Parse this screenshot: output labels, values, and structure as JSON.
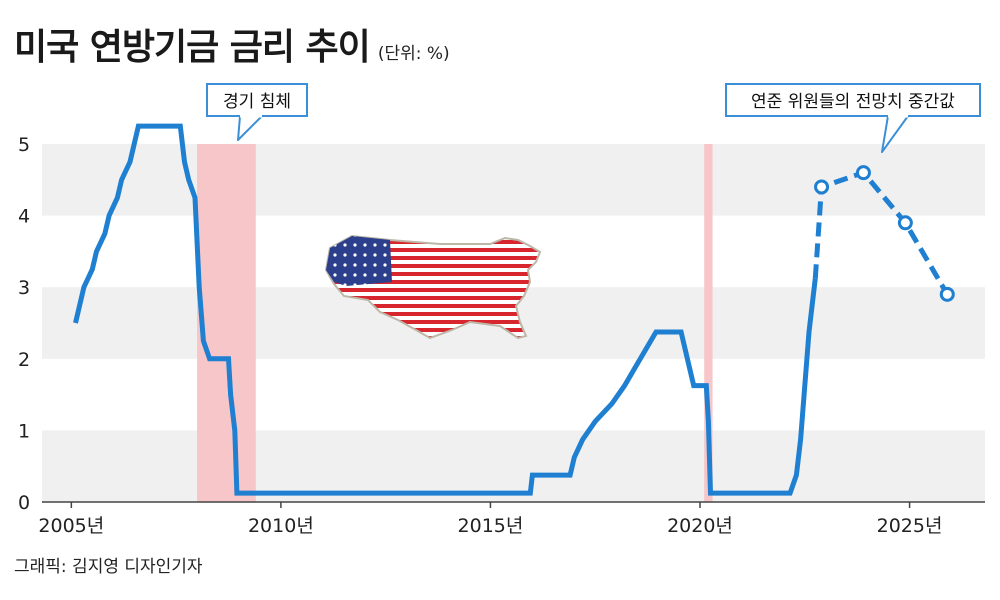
{
  "title": "미국 연방기금 금리 추이",
  "unit": "(단위: %)",
  "credit": "그래픽: 김지영 디자인기자",
  "annotations": {
    "recession": "경기 침체",
    "projection": "연준 위원들의 전망치 중간값"
  },
  "colors": {
    "line": "#1f7fd1",
    "band": "#f0f0f0",
    "recession": "#f6c6c8",
    "callout_border": "#3b8fd6"
  },
  "chart_data": {
    "type": "line",
    "title": "미국 연방기금 금리 추이",
    "xlabel": "",
    "ylabel": "",
    "ylim": [
      0,
      5.5
    ],
    "xlim": [
      2004.3,
      2026.8
    ],
    "y_ticks": [
      "0",
      "1",
      "2",
      "3",
      "4",
      "5"
    ],
    "x_ticks": [
      {
        "value": 2005,
        "label": "2005년"
      },
      {
        "value": 2010,
        "label": "2010년"
      },
      {
        "value": 2015,
        "label": "2015년"
      },
      {
        "value": 2020,
        "label": "2020년"
      },
      {
        "value": 2025,
        "label": "2025년"
      }
    ],
    "recessions": [
      [
        2008.0,
        2009.4
      ],
      [
        2020.1,
        2020.3
      ]
    ],
    "series": [
      {
        "style": "solid-step",
        "points": [
          [
            2005.1,
            2.5
          ],
          [
            2005.2,
            2.75
          ],
          [
            2005.3,
            3.0
          ],
          [
            2005.5,
            3.25
          ],
          [
            2005.6,
            3.5
          ],
          [
            2005.8,
            3.75
          ],
          [
            2005.9,
            4.0
          ],
          [
            2006.1,
            4.25
          ],
          [
            2006.2,
            4.5
          ],
          [
            2006.4,
            4.75
          ],
          [
            2006.5,
            5.0
          ],
          [
            2006.6,
            5.25
          ],
          [
            2007.6,
            5.25
          ],
          [
            2007.7,
            4.75
          ],
          [
            2007.8,
            4.5
          ],
          [
            2007.95,
            4.25
          ],
          [
            2008.05,
            3.0
          ],
          [
            2008.15,
            2.25
          ],
          [
            2008.3,
            2.0
          ],
          [
            2008.75,
            2.0
          ],
          [
            2008.8,
            1.5
          ],
          [
            2008.9,
            1.0
          ],
          [
            2008.95,
            0.125
          ],
          [
            2015.95,
            0.125
          ],
          [
            2016.0,
            0.375
          ],
          [
            2016.9,
            0.375
          ],
          [
            2017.0,
            0.625
          ],
          [
            2017.2,
            0.875
          ],
          [
            2017.5,
            1.125
          ],
          [
            2017.9,
            1.375
          ],
          [
            2018.2,
            1.625
          ],
          [
            2018.45,
            1.875
          ],
          [
            2018.7,
            2.125
          ],
          [
            2018.95,
            2.375
          ],
          [
            2019.55,
            2.375
          ],
          [
            2019.65,
            2.125
          ],
          [
            2019.75,
            1.875
          ],
          [
            2019.85,
            1.625
          ],
          [
            2020.15,
            1.625
          ],
          [
            2020.2,
            1.125
          ],
          [
            2020.25,
            0.125
          ],
          [
            2022.15,
            0.125
          ],
          [
            2022.3,
            0.375
          ],
          [
            2022.4,
            0.875
          ],
          [
            2022.5,
            1.625
          ],
          [
            2022.6,
            2.375
          ],
          [
            2022.75,
            3.125
          ]
        ]
      },
      {
        "style": "dashed-projection",
        "points": [
          [
            2022.75,
            3.125
          ],
          [
            2022.9,
            4.4
          ],
          [
            2023.9,
            4.6
          ],
          [
            2024.9,
            3.9
          ],
          [
            2025.9,
            2.9
          ]
        ],
        "markers": [
          [
            2022.9,
            4.4
          ],
          [
            2023.9,
            4.6
          ],
          [
            2024.9,
            3.9
          ],
          [
            2025.9,
            2.9
          ]
        ]
      }
    ]
  }
}
